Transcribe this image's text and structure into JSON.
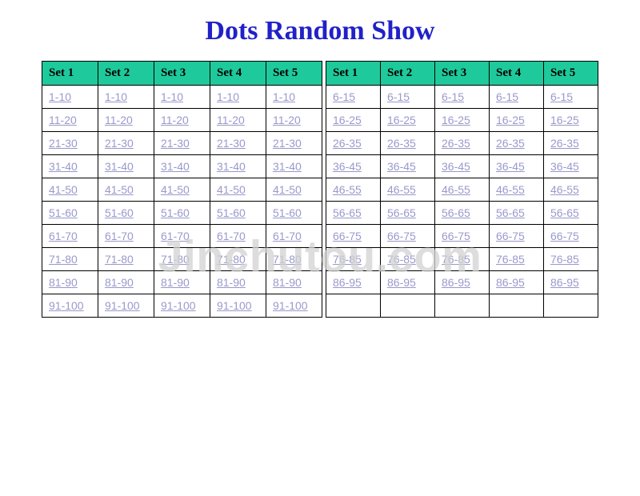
{
  "title": "Dots Random Show",
  "title_color": "#2121c9",
  "header_bg": "#1ec99b",
  "link_color": "#9999cc",
  "watermark": "Jinchutou.com",
  "headers": [
    "Set 1",
    "Set 2",
    "Set 3",
    "Set 4",
    "Set 5"
  ],
  "left_rows": [
    "1-10",
    "11-20",
    "21-30",
    "31-40",
    "41-50",
    "51-60",
    "61-70",
    "71-80",
    "81-90",
    "91-100"
  ],
  "right_rows": [
    "6-15",
    "16-25",
    "26-35",
    "36-45",
    "46-55",
    "56-65",
    "66-75",
    "76-85",
    "86-95",
    ""
  ]
}
